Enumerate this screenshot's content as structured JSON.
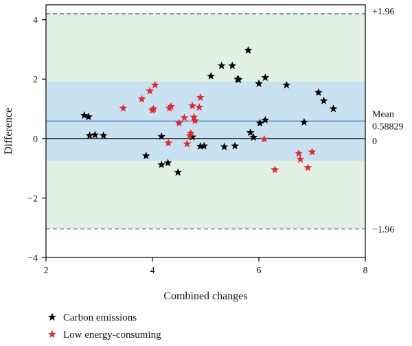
{
  "chart_data": {
    "type": "scatter",
    "title": "",
    "xlabel": "Combined changes",
    "ylabel": "Difference",
    "xlim": [
      2,
      8
    ],
    "ylim": [
      -4,
      4.5
    ],
    "x_ticks": [
      2,
      4,
      6,
      8
    ],
    "y_ticks": [
      -4,
      -2,
      0,
      2,
      4
    ],
    "x_tick_labels": [
      "2",
      "4",
      "6",
      "8"
    ],
    "y_tick_labels": [
      "−4",
      "−2",
      "0",
      "2",
      "4"
    ],
    "grid": false,
    "legend_position": "bottom-left",
    "reference_lines": {
      "upper": {
        "value": 4.2,
        "label": "+1.96"
      },
      "mean": {
        "value": 0.58829,
        "label_line1": "Mean",
        "label_line2": "0.58829"
      },
      "zero": {
        "value": 0,
        "label": "0"
      },
      "lower": {
        "value": -3.04,
        "label": "−1.96"
      }
    },
    "bands": {
      "outer": {
        "from": -3.04,
        "to": 4.2,
        "color": "#e3f1e5"
      },
      "inner": {
        "from": -0.75,
        "to": 1.92,
        "color": "#c9e2f1"
      }
    },
    "colors": {
      "mean_line": "#4a7fc0",
      "limit_line": "#3f6fb5",
      "zero_line": "#000000"
    },
    "series": [
      {
        "name": "Carbon emissions",
        "color": "#000000",
        "points": [
          [
            2.72,
            0.78
          ],
          [
            2.8,
            0.73
          ],
          [
            2.82,
            0.1
          ],
          [
            2.92,
            0.12
          ],
          [
            3.08,
            0.1
          ],
          [
            3.88,
            -0.58
          ],
          [
            4.17,
            0.07
          ],
          [
            4.17,
            -0.88
          ],
          [
            4.29,
            -0.82
          ],
          [
            4.48,
            -1.14
          ],
          [
            4.75,
            0.05
          ],
          [
            4.9,
            -0.26
          ],
          [
            4.97,
            -0.25
          ],
          [
            5.1,
            2.1
          ],
          [
            5.3,
            2.45
          ],
          [
            5.35,
            -0.28
          ],
          [
            5.5,
            2.45
          ],
          [
            5.55,
            -0.25
          ],
          [
            5.6,
            2.0
          ],
          [
            5.62,
            1.98
          ],
          [
            5.8,
            2.97
          ],
          [
            5.84,
            0.2
          ],
          [
            5.9,
            0.04
          ],
          [
            6.0,
            1.85
          ],
          [
            6.02,
            0.52
          ],
          [
            6.12,
            2.05
          ],
          [
            6.12,
            0.62
          ],
          [
            6.52,
            1.8
          ],
          [
            6.85,
            0.55
          ],
          [
            7.12,
            1.55
          ],
          [
            7.22,
            1.27
          ],
          [
            7.4,
            1.0
          ]
        ]
      },
      {
        "name": "Low energy-consuming",
        "color": "#e8252b",
        "points": [
          [
            3.45,
            1.02
          ],
          [
            3.8,
            1.33
          ],
          [
            3.95,
            1.6
          ],
          [
            4.0,
            0.95
          ],
          [
            4.02,
            1.0
          ],
          [
            4.05,
            1.8
          ],
          [
            4.3,
            -0.15
          ],
          [
            4.32,
            1.02
          ],
          [
            4.35,
            1.08
          ],
          [
            4.5,
            0.52
          ],
          [
            4.6,
            0.7
          ],
          [
            4.65,
            -0.18
          ],
          [
            4.7,
            0.1
          ],
          [
            4.72,
            0.18
          ],
          [
            4.75,
            1.1
          ],
          [
            4.78,
            0.72
          ],
          [
            4.8,
            0.6
          ],
          [
            4.88,
            1.05
          ],
          [
            4.9,
            1.38
          ],
          [
            6.1,
            -0.02
          ],
          [
            6.3,
            -1.05
          ],
          [
            6.75,
            -0.5
          ],
          [
            6.78,
            -0.7
          ],
          [
            6.92,
            -0.98
          ],
          [
            7.0,
            -0.45
          ]
        ]
      }
    ]
  }
}
